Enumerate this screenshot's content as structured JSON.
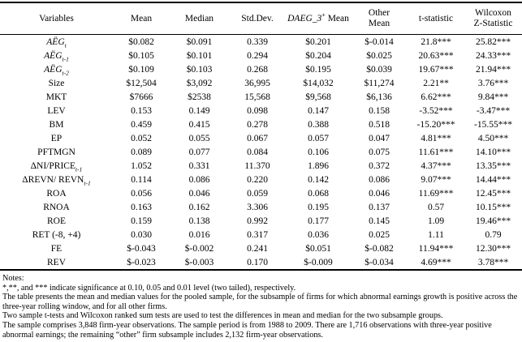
{
  "table": {
    "headers": {
      "variables": "Variables",
      "mean": "Mean",
      "median": "Median",
      "stddev": "Std.Dev.",
      "daeg": {
        "prefix": "DAEG_3",
        "sup": "+",
        "suffix": " Mean"
      },
      "other": {
        "line1": "Other",
        "line2": "Mean"
      },
      "tstat": "t-statistic",
      "wilcoxon": {
        "line1": "Wilcoxon",
        "line2": "Z-Statistic"
      }
    },
    "rows": [
      {
        "variable": {
          "text": "AËG",
          "sub": "t",
          "italic": true
        },
        "values": [
          "$0.082",
          "$0.091",
          "0.339",
          "$0.201",
          "$-0.014",
          "21.8***",
          "25.82***"
        ]
      },
      {
        "variable": {
          "text": "AËG",
          "sub": "t-1",
          "italic": true
        },
        "values": [
          "$0.105",
          "$0.101",
          "0.294",
          "$0.204",
          "$0.025",
          "20.63***",
          "24.33***"
        ]
      },
      {
        "variable": {
          "text": "AËG",
          "sub": "t-2",
          "italic": true
        },
        "values": [
          "$0.109",
          "$0.103",
          "0.268",
          "$0.195",
          "$0.039",
          "19.67***",
          "21.94***"
        ]
      },
      {
        "variable": {
          "text": "Size",
          "sub": "",
          "italic": false
        },
        "values": [
          "$12,504",
          "$3,092",
          "36,995",
          "$14,032",
          "$11,274",
          "2.21**",
          "3.76***"
        ]
      },
      {
        "variable": {
          "text": "MKT",
          "sub": "",
          "italic": false
        },
        "values": [
          "$7666",
          "$2538",
          "15,568",
          "$9,568",
          "$6,136",
          "6.62***",
          "9.84***"
        ]
      },
      {
        "variable": {
          "text": "LEV",
          "sub": "",
          "italic": false
        },
        "values": [
          "0.153",
          "0.149",
          "0.098",
          "0.147",
          "0.158",
          "-3.52***",
          "-3.47***"
        ]
      },
      {
        "variable": {
          "text": "BM",
          "sub": "",
          "italic": false
        },
        "values": [
          "0.459",
          "0.415",
          "0.278",
          "0.388",
          "0.518",
          "-15.20***",
          "-15.55***"
        ]
      },
      {
        "variable": {
          "text": "EP",
          "sub": "",
          "italic": false
        },
        "values": [
          "0.052",
          "0.055",
          "0.067",
          "0.057",
          "0.047",
          "4.81***",
          "4.50***"
        ]
      },
      {
        "variable": {
          "text": "PFTMGN",
          "sub": "",
          "italic": false
        },
        "values": [
          "0.089",
          "0.077",
          "0.084",
          "0.106",
          "0.075",
          "11.61***",
          "14.10***"
        ]
      },
      {
        "variable": {
          "text": "ΔNI/PRICE",
          "sub": "t-1",
          "italic": false
        },
        "values": [
          "1.052",
          "0.331",
          "11.370",
          "1.896",
          "0.372",
          "4.37***",
          "13.35***"
        ]
      },
      {
        "variable": {
          "text": "ΔREVN/ REVN",
          "sub": "t-1",
          "italic": false
        },
        "values": [
          "0.114",
          "0.086",
          "0.220",
          "0.142",
          "0.086",
          "9.07***",
          "14.44***"
        ]
      },
      {
        "variable": {
          "text": "ROA",
          "sub": "",
          "italic": false
        },
        "values": [
          "0.056",
          "0.046",
          "0.059",
          "0.068",
          "0.046",
          "11.69***",
          "12.45***"
        ]
      },
      {
        "variable": {
          "text": "RNOA",
          "sub": "",
          "italic": false
        },
        "values": [
          "0.163",
          "0.162",
          "3.306",
          "0.195",
          "0.137",
          "0.57",
          "10.15***"
        ]
      },
      {
        "variable": {
          "text": "ROE",
          "sub": "",
          "italic": false
        },
        "values": [
          "0.159",
          "0.138",
          "0.992",
          "0.177",
          "0.145",
          "1.09",
          "19.46***"
        ]
      },
      {
        "variable": {
          "text": "RET (-8, +4)",
          "sub": "",
          "italic": false
        },
        "values": [
          "0.030",
          "0.016",
          "0.317",
          "0.036",
          "0.025",
          "1.11",
          "0.79"
        ]
      },
      {
        "variable": {
          "text": "FE",
          "sub": "",
          "italic": false
        },
        "values": [
          "$-0.043",
          "$-0.002",
          "0.241",
          "$0.051",
          "$-0.082",
          "11.94***",
          "12.30***"
        ]
      },
      {
        "variable": {
          "text": "REV",
          "sub": "",
          "italic": false
        },
        "values": [
          "$-0.023",
          "$-0.003",
          "0.170",
          "$-0.009",
          "$-0.034",
          "4.69***",
          "3.78***"
        ]
      }
    ]
  },
  "notes": {
    "title": "Notes:",
    "lines": [
      "*,**, and *** indicate significance at 0.10, 0.05 and 0.01 level (two tailed), respectively.",
      "The table presents the mean and median values for the pooled sample, for the subsample of firms for which abnormal earnings growth is positive across the three-year rolling window, and for all other firms.",
      "Two sample t-tests and Wilcoxon ranked sum tests are used to test the differences in mean and median for the two subsample groups.",
      "The sample comprises 3,848 firm-year observations. The sample period is from 1988 to 2009. There are 1,716 observations with three-year positive abnormal earnings; the remaining “other” firm subsample includes 2,132 firm-year observations."
    ]
  }
}
